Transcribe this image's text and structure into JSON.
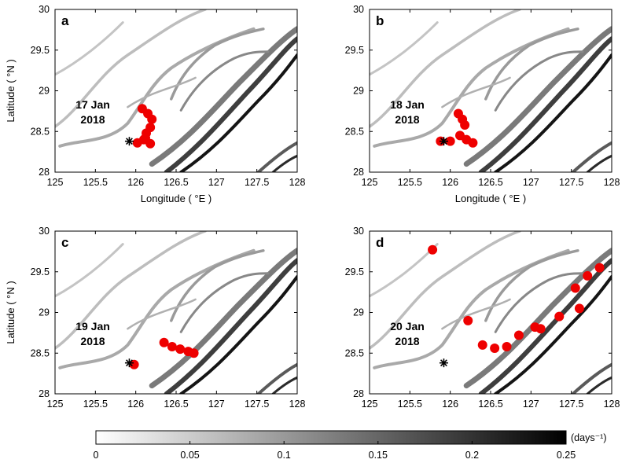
{
  "chart_data": [
    {
      "type": "heatmap",
      "panel_label": "a",
      "date_label": [
        "17 Jan",
        "2018"
      ],
      "xlabel": "Longitude ( °E )",
      "ylabel": "Latitude ( °N )",
      "xlim": [
        125,
        128
      ],
      "ylim": [
        28,
        30
      ],
      "xticks": [
        "125",
        "125.5",
        "126",
        "126.5",
        "127",
        "127.5",
        "128"
      ],
      "yticks": [
        "28",
        "28.5",
        "29",
        "29.5",
        "30"
      ],
      "marker": {
        "lon": 125.92,
        "lat": 28.38
      },
      "patch_points": [
        [
          126.08,
          28.78
        ],
        [
          126.15,
          28.72
        ],
        [
          126.2,
          28.65
        ],
        [
          126.18,
          28.55
        ],
        [
          126.13,
          28.48
        ],
        [
          126.1,
          28.4
        ],
        [
          126.18,
          28.35
        ],
        [
          126.12,
          28.42
        ],
        [
          126.02,
          28.36
        ]
      ]
    },
    {
      "type": "heatmap",
      "panel_label": "b",
      "date_label": [
        "18 Jan",
        "2018"
      ],
      "xlabel": "Longitude ( °E )",
      "ylabel": "",
      "xlim": [
        125,
        128
      ],
      "ylim": [
        28,
        30
      ],
      "xticks": [
        "125",
        "125.5",
        "126",
        "126.5",
        "127",
        "127.5",
        "128"
      ],
      "yticks": [
        "28",
        "28.5",
        "29",
        "29.5",
        "30"
      ],
      "marker": {
        "lon": 125.92,
        "lat": 28.38
      },
      "patch_points": [
        [
          126.1,
          28.72
        ],
        [
          126.15,
          28.65
        ],
        [
          126.18,
          28.58
        ],
        [
          126.12,
          28.45
        ],
        [
          126.2,
          28.4
        ],
        [
          126.28,
          28.36
        ],
        [
          126.0,
          28.38
        ],
        [
          125.88,
          28.38
        ]
      ]
    },
    {
      "type": "heatmap",
      "panel_label": "c",
      "date_label": [
        "19 Jan",
        "2018"
      ],
      "xlabel": "",
      "ylabel": "Latitude ( °N )",
      "xlim": [
        125,
        128
      ],
      "ylim": [
        28,
        30
      ],
      "xticks": [
        "125",
        "125.5",
        "126",
        "126.5",
        "127",
        "127.5",
        "128"
      ],
      "yticks": [
        "28",
        "28.5",
        "29",
        "29.5",
        "30"
      ],
      "marker": {
        "lon": 125.92,
        "lat": 28.38
      },
      "patch_points": [
        [
          126.35,
          28.63
        ],
        [
          126.45,
          28.58
        ],
        [
          126.55,
          28.55
        ],
        [
          126.65,
          28.52
        ],
        [
          126.72,
          28.5
        ],
        [
          125.98,
          28.36
        ]
      ]
    },
    {
      "type": "heatmap",
      "panel_label": "d",
      "date_label": [
        "20 Jan",
        "2018"
      ],
      "xlabel": "",
      "ylabel": "",
      "xlim": [
        125,
        128
      ],
      "ylim": [
        28,
        30
      ],
      "xticks": [
        "125",
        "125.5",
        "126",
        "126.5",
        "127",
        "127.5",
        "128"
      ],
      "yticks": [
        "28",
        "28.5",
        "29",
        "29.5",
        "30"
      ],
      "marker": {
        "lon": 125.92,
        "lat": 28.38
      },
      "patch_points": [
        [
          125.78,
          29.77
        ],
        [
          126.22,
          28.9
        ],
        [
          126.4,
          28.6
        ],
        [
          126.55,
          28.56
        ],
        [
          126.7,
          28.58
        ],
        [
          126.85,
          28.72
        ],
        [
          127.05,
          28.82
        ],
        [
          127.12,
          28.8
        ],
        [
          127.35,
          28.95
        ],
        [
          127.6,
          29.05
        ],
        [
          127.55,
          29.3
        ],
        [
          127.7,
          29.45
        ],
        [
          127.85,
          29.55
        ]
      ]
    }
  ],
  "colorbar": {
    "unit_label": "(days⁻¹)",
    "range": [
      0,
      0.25
    ],
    "tick_labels": [
      "0",
      "0.05",
      "0.1",
      "0.15",
      "0.2",
      "0.25"
    ],
    "colors": [
      "#ffffff",
      "#000000"
    ]
  },
  "colors": {
    "patch": "#ee0000",
    "ridge_light": "#b8b8b8",
    "ridge_dark": "#151515",
    "axis": "#000000"
  }
}
